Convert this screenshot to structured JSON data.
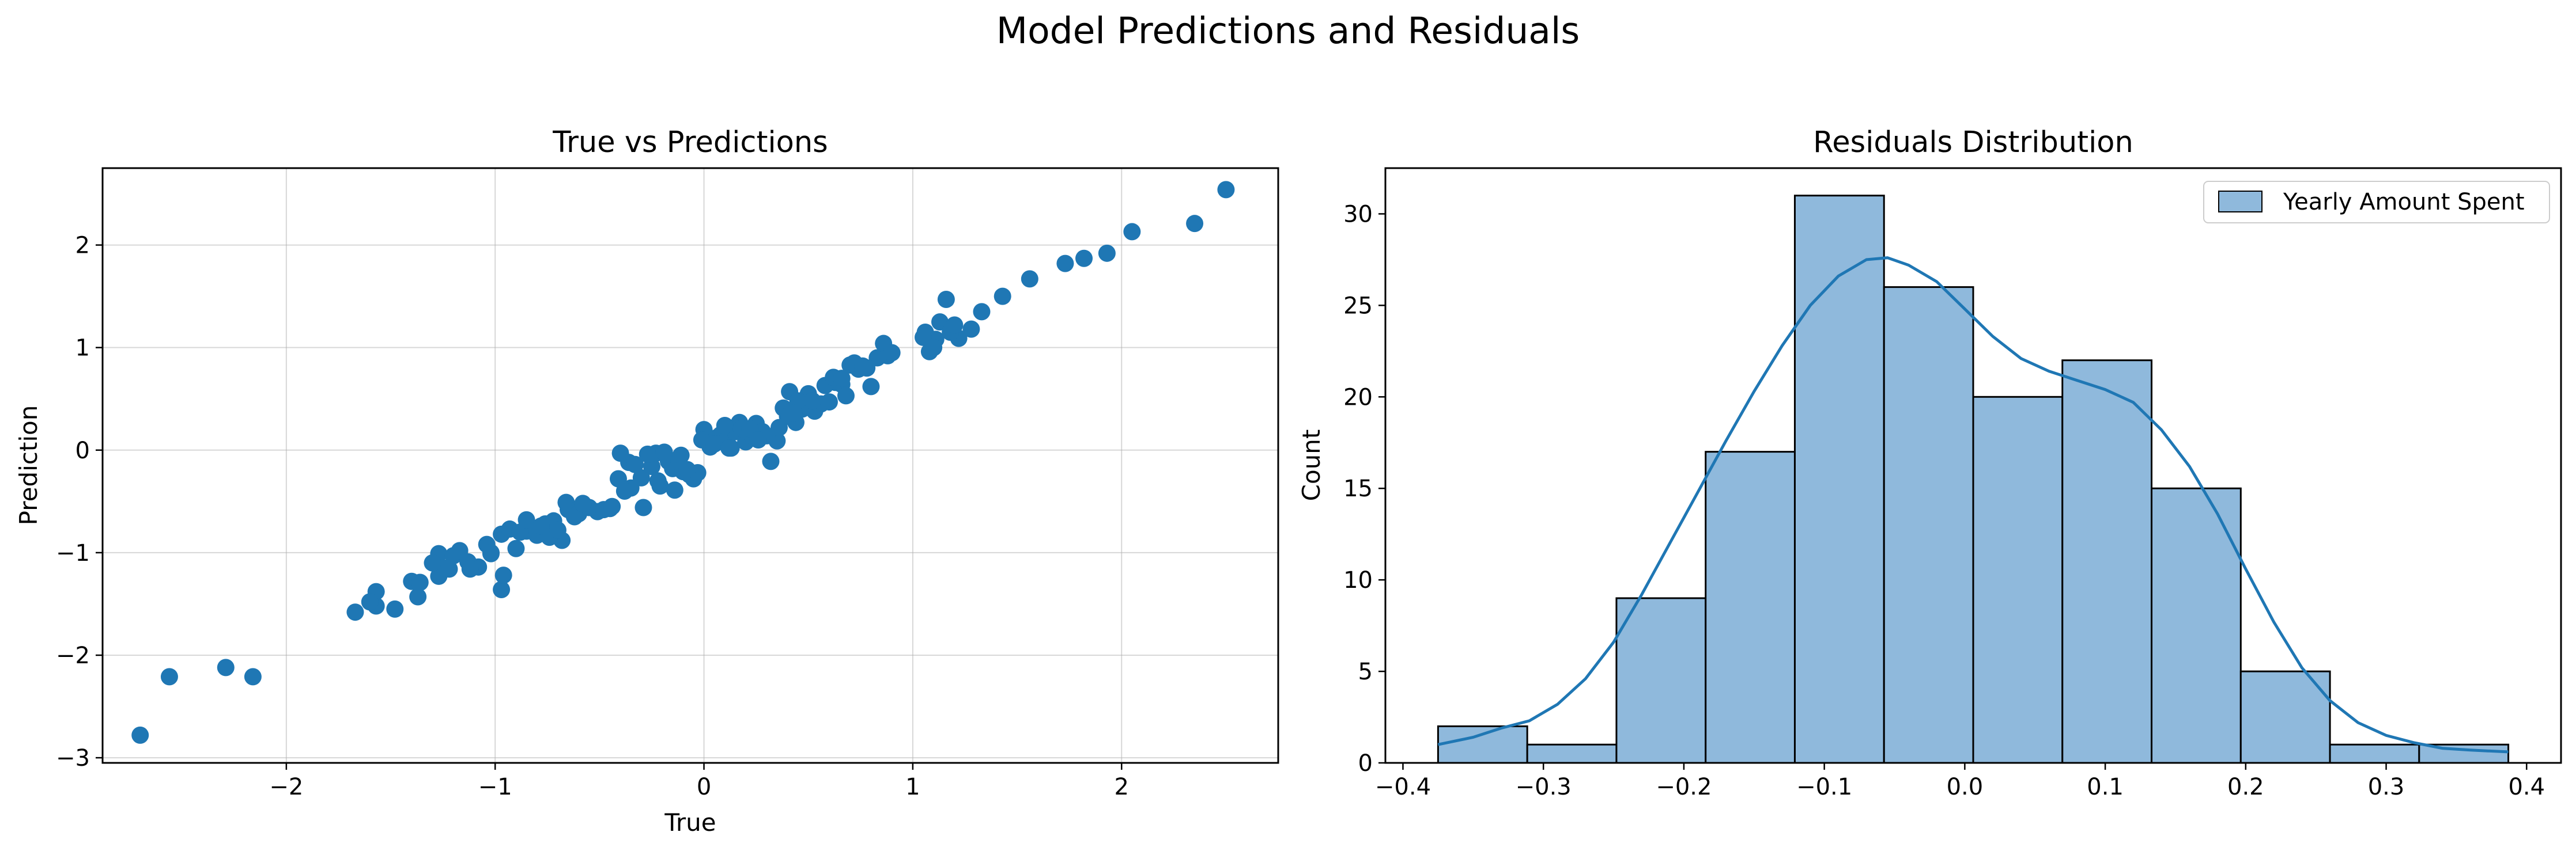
{
  "figure": {
    "suptitle": "Model Predictions and Residuals"
  },
  "chart_data": [
    {
      "type": "scatter",
      "title": "True vs Predictions",
      "xlabel": "True",
      "ylabel": "Prediction",
      "xlim": [
        -2.88,
        2.75
      ],
      "ylim": [
        -3.05,
        2.75
      ],
      "xticks": [
        -2,
        -1,
        0,
        1,
        2
      ],
      "xtick_labels": [
        "−2",
        "−1",
        "0",
        "1",
        "2"
      ],
      "yticks": [
        -3,
        -2,
        -1,
        0,
        1,
        2
      ],
      "ytick_labels": [
        "−3",
        "−2",
        "−1",
        "0",
        "1",
        "2"
      ],
      "grid": true,
      "color": "#1f77b4",
      "points": [
        [
          -2.7,
          -2.78
        ],
        [
          -2.56,
          -2.21
        ],
        [
          -2.29,
          -2.12
        ],
        [
          -2.16,
          -2.21
        ],
        [
          -1.67,
          -1.58
        ],
        [
          -1.57,
          -1.52
        ],
        [
          -1.57,
          -1.38
        ],
        [
          -1.48,
          -1.55
        ],
        [
          -1.4,
          -1.28
        ],
        [
          -1.37,
          -1.43
        ],
        [
          -1.36,
          -1.29
        ],
        [
          -1.27,
          -1.23
        ],
        [
          -1.27,
          -1.01
        ],
        [
          -1.22,
          -1.16
        ],
        [
          -1.2,
          -1.03
        ],
        [
          -1.17,
          -0.98
        ],
        [
          -1.13,
          -1.09
        ],
        [
          -1.08,
          -1.14
        ],
        [
          -1.02,
          -1.01
        ],
        [
          -0.97,
          -0.82
        ],
        [
          -0.97,
          -1.36
        ],
        [
          -0.96,
          -1.22
        ],
        [
          -0.93,
          -0.77
        ],
        [
          -0.9,
          -0.96
        ],
        [
          -0.85,
          -0.79
        ],
        [
          -0.8,
          -0.83
        ],
        [
          -0.76,
          -0.72
        ],
        [
          -0.72,
          -0.69
        ],
        [
          -0.68,
          -0.88
        ],
        [
          -0.66,
          -0.51
        ],
        [
          -0.65,
          -0.58
        ],
        [
          -0.6,
          -0.62
        ],
        [
          -0.51,
          -0.6
        ],
        [
          -0.45,
          -0.57
        ],
        [
          -0.41,
          -0.28
        ],
        [
          -0.4,
          -0.03
        ],
        [
          -0.36,
          -0.12
        ],
        [
          -0.35,
          -0.37
        ],
        [
          -0.3,
          -0.27
        ],
        [
          -0.29,
          -0.56
        ],
        [
          -0.25,
          -0.16
        ],
        [
          -0.23,
          -0.03
        ],
        [
          -0.21,
          -0.35
        ],
        [
          -0.17,
          -0.11
        ],
        [
          -0.15,
          -0.18
        ],
        [
          -0.14,
          -0.39
        ],
        [
          -0.12,
          -0.1
        ],
        [
          -0.1,
          -0.21
        ],
        [
          -0.07,
          -0.24
        ],
        [
          -0.05,
          -0.28
        ],
        [
          -0.03,
          -0.22
        ],
        [
          0.0,
          0.2
        ],
        [
          0.03,
          0.03
        ],
        [
          0.06,
          0.12
        ],
        [
          0.08,
          0.15
        ],
        [
          0.11,
          0.1
        ],
        [
          0.13,
          0.02
        ],
        [
          0.15,
          0.18
        ],
        [
          0.17,
          0.27
        ],
        [
          0.2,
          0.08
        ],
        [
          0.23,
          0.14
        ],
        [
          0.25,
          0.26
        ],
        [
          0.28,
          0.18
        ],
        [
          0.32,
          -0.11
        ],
        [
          0.35,
          0.09
        ],
        [
          0.38,
          0.41
        ],
        [
          0.41,
          0.57
        ],
        [
          0.44,
          0.27
        ],
        [
          0.47,
          0.4
        ],
        [
          0.5,
          0.55
        ],
        [
          0.53,
          0.38
        ],
        [
          0.56,
          0.45
        ],
        [
          0.6,
          0.47
        ],
        [
          0.63,
          0.66
        ],
        [
          0.66,
          0.64
        ],
        [
          0.68,
          0.53
        ],
        [
          0.7,
          0.83
        ],
        [
          0.74,
          0.79
        ],
        [
          0.8,
          0.62
        ],
        [
          0.83,
          0.9
        ],
        [
          0.86,
          1.04
        ],
        [
          0.88,
          0.92
        ],
        [
          1.06,
          1.15
        ],
        [
          1.08,
          0.96
        ],
        [
          1.11,
          1.08
        ],
        [
          1.13,
          1.25
        ],
        [
          1.16,
          1.47
        ],
        [
          1.22,
          1.09
        ],
        [
          1.28,
          1.18
        ],
        [
          1.33,
          1.35
        ],
        [
          1.43,
          1.5
        ],
        [
          1.56,
          1.67
        ],
        [
          1.73,
          1.82
        ],
        [
          1.82,
          1.87
        ],
        [
          1.93,
          1.92
        ],
        [
          2.05,
          2.13
        ],
        [
          2.35,
          2.21
        ],
        [
          2.5,
          2.54
        ],
        [
          -1.24,
          -1.15
        ],
        [
          -1.12,
          -1.16
        ],
        [
          -1.04,
          -0.92
        ],
        [
          -0.88,
          -0.8
        ],
        [
          -0.74,
          -0.85
        ],
        [
          -0.7,
          -0.78
        ],
        [
          -0.55,
          -0.56
        ],
        [
          -0.33,
          -0.14
        ],
        [
          -0.27,
          -0.04
        ],
        [
          -0.19,
          -0.02
        ],
        [
          -0.11,
          -0.05
        ],
        [
          -0.08,
          -0.19
        ],
        [
          -0.01,
          0.1
        ],
        [
          0.05,
          0.06
        ],
        [
          0.1,
          0.24
        ],
        [
          0.18,
          0.21
        ],
        [
          0.21,
          0.18
        ],
        [
          0.22,
          0.21
        ],
        [
          0.3,
          0.14
        ],
        [
          0.36,
          0.22
        ],
        [
          0.4,
          0.33
        ],
        [
          0.45,
          0.48
        ],
        [
          0.52,
          0.48
        ],
        [
          0.58,
          0.63
        ],
        [
          0.62,
          0.71
        ],
        [
          0.72,
          0.85
        ],
        [
          0.78,
          0.8
        ],
        [
          0.9,
          0.95
        ],
        [
          1.05,
          1.1
        ],
        [
          1.1,
          1.0
        ],
        [
          1.18,
          1.15
        ],
        [
          1.2,
          1.22
        ],
        [
          -1.6,
          -1.48
        ],
        [
          -1.3,
          -1.1
        ],
        [
          -0.85,
          -0.68
        ],
        [
          -0.62,
          -0.65
        ],
        [
          -0.48,
          -0.58
        ],
        [
          -0.38,
          -0.4
        ],
        [
          -0.22,
          -0.3
        ],
        [
          0.12,
          0.02
        ],
        [
          0.26,
          0.1
        ],
        [
          0.43,
          0.36
        ],
        [
          0.66,
          0.7
        ],
        [
          0.76,
          0.82
        ],
        [
          -1.02,
          -1.0
        ],
        [
          -0.78,
          -0.74
        ],
        [
          -0.58,
          -0.52
        ],
        [
          -0.44,
          -0.55
        ]
      ]
    },
    {
      "type": "bar",
      "title": "Residuals Distribution",
      "xlabel": "",
      "ylabel": "Count",
      "xlim": [
        -0.4125,
        0.4245
      ],
      "ylim": [
        0,
        32.5
      ],
      "xticks": [
        -0.4,
        -0.3,
        -0.2,
        -0.1,
        0.0,
        0.1,
        0.2,
        0.3,
        0.4
      ],
      "xtick_labels": [
        "−0.4",
        "−0.3",
        "−0.2",
        "−0.1",
        "0.0",
        "0.1",
        "0.2",
        "0.3",
        "0.4"
      ],
      "yticks": [
        0,
        5,
        10,
        15,
        20,
        25,
        30
      ],
      "ytick_labels": [
        "0",
        "5",
        "10",
        "15",
        "20",
        "25",
        "30"
      ],
      "grid": false,
      "legend": {
        "label": "Yearly Amount Spent",
        "position": "upper right"
      },
      "bar_fill": "#8fb9dc",
      "line_color": "#1f77b4",
      "bin_edges": [
        -0.375,
        -0.3115,
        -0.248,
        -0.1845,
        -0.121,
        -0.0575,
        0.006,
        0.0695,
        0.133,
        0.1965,
        0.26,
        0.3235,
        0.387
      ],
      "counts": [
        2,
        1,
        9,
        17,
        31,
        26,
        20,
        22,
        15,
        5,
        1,
        1
      ],
      "kde": [
        [
          -0.375,
          1.0
        ],
        [
          -0.35,
          1.4
        ],
        [
          -0.33,
          1.9
        ],
        [
          -0.31,
          2.3
        ],
        [
          -0.29,
          3.2
        ],
        [
          -0.27,
          4.6
        ],
        [
          -0.25,
          6.6
        ],
        [
          -0.23,
          9.2
        ],
        [
          -0.21,
          12.0
        ],
        [
          -0.19,
          14.8
        ],
        [
          -0.17,
          17.6
        ],
        [
          -0.15,
          20.3
        ],
        [
          -0.13,
          22.8
        ],
        [
          -0.11,
          25.0
        ],
        [
          -0.09,
          26.6
        ],
        [
          -0.07,
          27.5
        ],
        [
          -0.055,
          27.6
        ],
        [
          -0.04,
          27.2
        ],
        [
          -0.02,
          26.3
        ],
        [
          0.0,
          24.8
        ],
        [
          0.02,
          23.3
        ],
        [
          0.04,
          22.1
        ],
        [
          0.06,
          21.4
        ],
        [
          0.08,
          20.9
        ],
        [
          0.1,
          20.4
        ],
        [
          0.12,
          19.7
        ],
        [
          0.14,
          18.2
        ],
        [
          0.16,
          16.2
        ],
        [
          0.18,
          13.6
        ],
        [
          0.2,
          10.6
        ],
        [
          0.22,
          7.7
        ],
        [
          0.24,
          5.2
        ],
        [
          0.26,
          3.4
        ],
        [
          0.28,
          2.2
        ],
        [
          0.3,
          1.5
        ],
        [
          0.32,
          1.1
        ],
        [
          0.34,
          0.8
        ],
        [
          0.36,
          0.7
        ],
        [
          0.387,
          0.6
        ]
      ]
    }
  ]
}
